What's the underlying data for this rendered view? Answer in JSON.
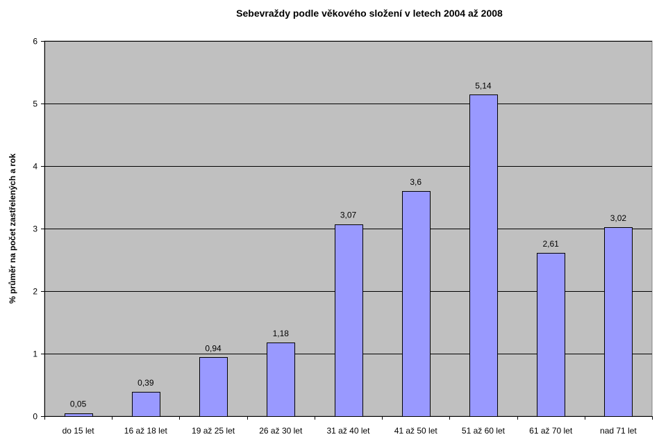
{
  "chart_data": {
    "type": "bar",
    "title": "Sebevraždy podle věkového složení v letech 2004 až 2008",
    "xlabel": "",
    "ylabel": "% průměr na počet zastřelených a rok",
    "categories": [
      "do 15 let",
      "16 až 18 let",
      "19 až 25 let",
      "26 až 30 let",
      "31 až 40 let",
      "41 až 50 let",
      "51 až 60 let",
      "61 až 70 let",
      "nad 71 let"
    ],
    "values": [
      0.05,
      0.39,
      0.94,
      1.18,
      3.07,
      3.6,
      5.14,
      2.61,
      3.02
    ],
    "data_labels": [
      "0,05",
      "0,39",
      "0,94",
      "1,18",
      "3,07",
      "3,6",
      "5,14",
      "2,61",
      "3,02"
    ],
    "ylim": [
      0,
      6
    ],
    "yticks": [
      0,
      1,
      2,
      3,
      4,
      5,
      6
    ],
    "ytick_labels": [
      "0",
      "1",
      "2",
      "3",
      "4",
      "5",
      "6"
    ],
    "grid": true,
    "legend": "none",
    "colors": {
      "bar_fill": "#9999ff",
      "bar_stroke": "#000000",
      "plot_background": "#c0c0c0",
      "gridline": "#000000"
    }
  }
}
